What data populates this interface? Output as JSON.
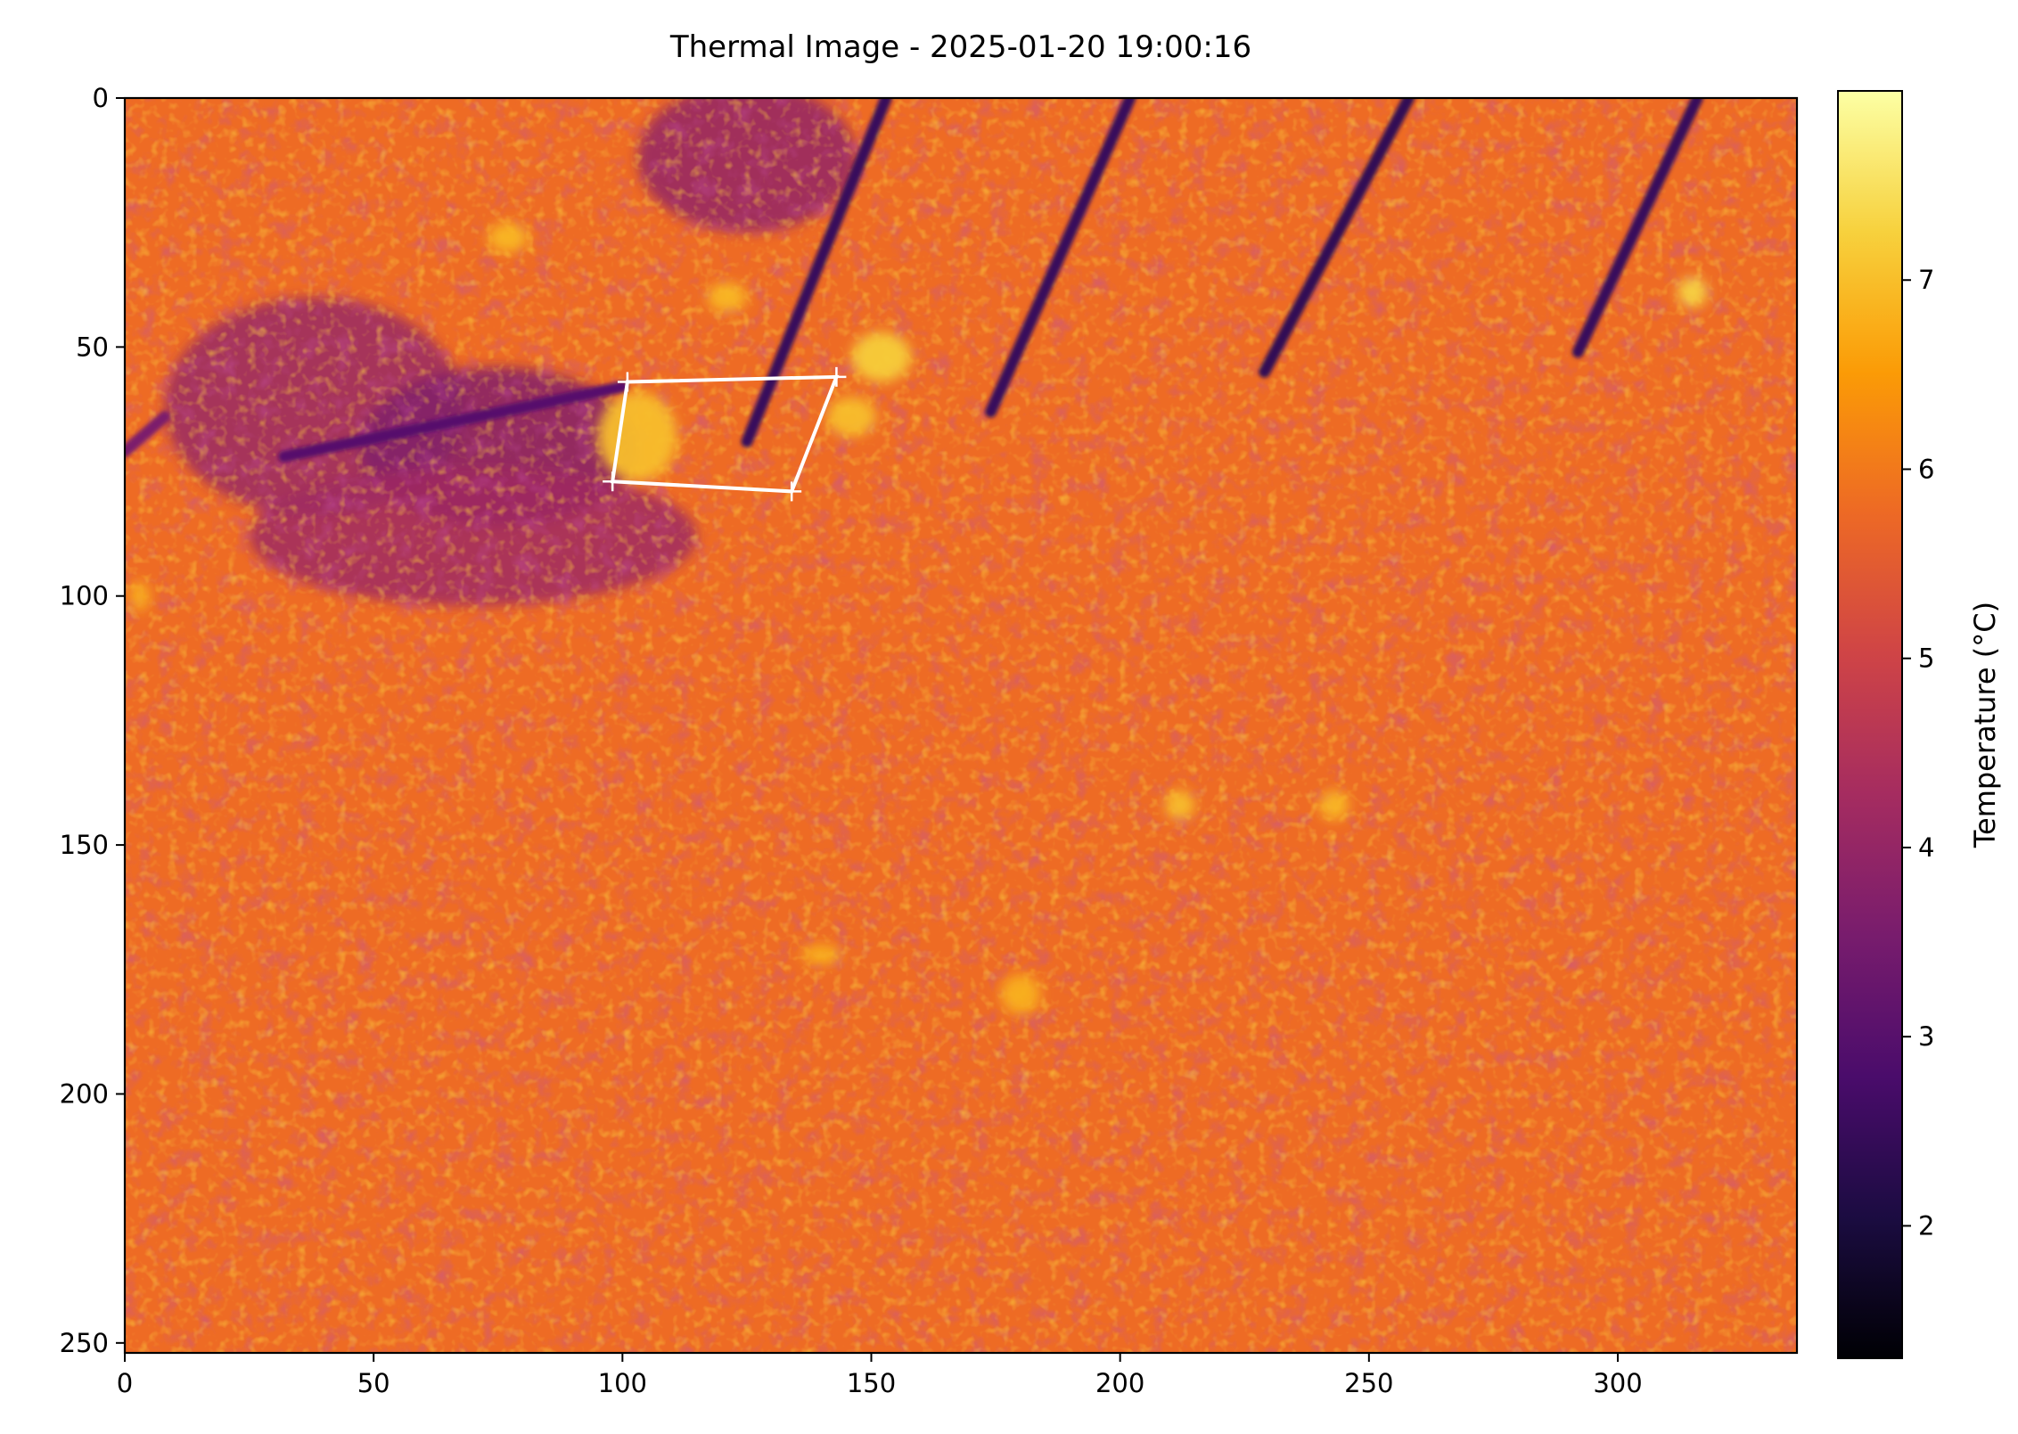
{
  "chart_data": {
    "type": "heatmap",
    "title": "Thermal Image - 2025-01-20 19:00:16",
    "xlabel": "",
    "ylabel": "",
    "xlim": [
      0,
      336
    ],
    "ylim": [
      252,
      0
    ],
    "x_ticks": [
      0,
      50,
      100,
      150,
      200,
      250,
      300
    ],
    "y_ticks": [
      0,
      50,
      100,
      150,
      200,
      250
    ],
    "colormap": "inferno",
    "colormap_stops": [
      "#000004",
      "#1b0c41",
      "#4a0c6b",
      "#781c6d",
      "#a52c60",
      "#cf4446",
      "#ed6925",
      "#fb9b06",
      "#f7d13d",
      "#fcffa4"
    ],
    "colorbar": {
      "label": "Temperature (°C)",
      "range": [
        1.3,
        8.0
      ],
      "ticks": [
        2,
        3,
        4,
        5,
        6,
        7
      ]
    },
    "background_temperature": 5.8,
    "grid": false,
    "features": {
      "cold_stripes": [
        {
          "from": [
            153,
            0
          ],
          "to": [
            125,
            69
          ],
          "temp": 2.5
        },
        {
          "from": [
            202,
            0
          ],
          "to": [
            174,
            63
          ],
          "temp": 2.5
        },
        {
          "from": [
            258,
            0
          ],
          "to": [
            229,
            55
          ],
          "temp": 2.4
        },
        {
          "from": [
            316,
            0
          ],
          "to": [
            292,
            51
          ],
          "temp": 2.5
        },
        {
          "from": [
            32,
            72
          ],
          "to": [
            100,
            58
          ],
          "temp": 3.0
        },
        {
          "from": [
            0,
            71
          ],
          "to": [
            8,
            64
          ],
          "temp": 3.6
        }
      ],
      "cool_regions": [
        {
          "center": [
            38,
            62
          ],
          "radius": [
            30,
            22
          ],
          "temp": 4.1
        },
        {
          "center": [
            75,
            70
          ],
          "radius": [
            28,
            16
          ],
          "temp": 3.7
        },
        {
          "center": [
            125,
            12
          ],
          "radius": [
            22,
            15
          ],
          "temp": 4.0
        },
        {
          "center": [
            70,
            88
          ],
          "radius": [
            45,
            14
          ],
          "temp": 4.2
        }
      ],
      "warm_spots": [
        {
          "center": [
            103,
            68
          ],
          "radius": [
            8,
            9
          ],
          "temp": 7.0
        },
        {
          "center": [
            152,
            52
          ],
          "radius": [
            6,
            5
          ],
          "temp": 7.2
        },
        {
          "center": [
            146,
            64
          ],
          "radius": [
            5,
            4
          ],
          "temp": 7.0
        },
        {
          "center": [
            121,
            40
          ],
          "radius": [
            4,
            3
          ],
          "temp": 6.9
        },
        {
          "center": [
            315,
            39
          ],
          "radius": [
            3,
            3
          ],
          "temp": 7.3
        },
        {
          "center": [
            212,
            142
          ],
          "radius": [
            3,
            3
          ],
          "temp": 7.0
        },
        {
          "center": [
            243,
            142
          ],
          "radius": [
            3,
            3
          ],
          "temp": 6.9
        },
        {
          "center": [
            180,
            180
          ],
          "radius": [
            4,
            4
          ],
          "temp": 6.8
        },
        {
          "center": [
            140,
            172
          ],
          "radius": [
            4,
            2
          ],
          "temp": 6.8
        },
        {
          "center": [
            77,
            28
          ],
          "radius": [
            4,
            3
          ],
          "temp": 6.9
        },
        {
          "center": [
            3,
            100
          ],
          "radius": [
            2,
            3
          ],
          "temp": 6.8
        }
      ]
    },
    "annotation_polygon": {
      "color": "#ffffff",
      "vertices": [
        [
          101,
          57
        ],
        [
          143,
          56
        ],
        [
          134,
          79
        ],
        [
          98,
          77
        ]
      ]
    }
  }
}
